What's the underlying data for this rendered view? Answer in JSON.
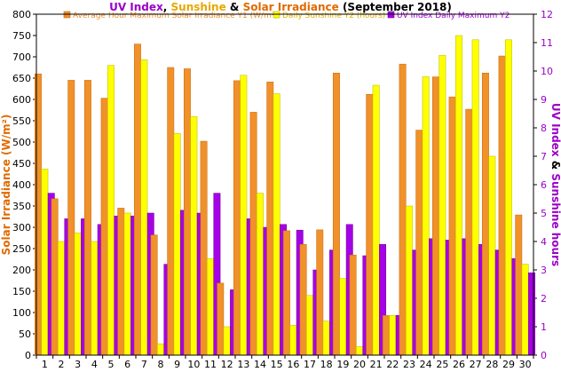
{
  "chart_data": {
    "type": "bar",
    "title": {
      "parts": [
        {
          "text": "UV Index",
          "color": "#9b00c8"
        },
        {
          "text": ", ",
          "color": "#000000"
        },
        {
          "text": "Sunshine",
          "color": "#e8a800"
        },
        {
          "text": " & ",
          "color": "#000000"
        },
        {
          "text": "Solar Irradiance",
          "color": "#e06a00"
        },
        {
          "text": " (September 2018)",
          "color": "#000000"
        }
      ]
    },
    "categories": [
      "1",
      "2",
      "3",
      "4",
      "5",
      "6",
      "7",
      "8",
      "9",
      "10",
      "11",
      "12",
      "13",
      "14",
      "15",
      "16",
      "17",
      "18",
      "19",
      "20",
      "21",
      "22",
      "23",
      "24",
      "25",
      "26",
      "27",
      "28",
      "29",
      "30"
    ],
    "series": [
      {
        "name": "Average Hour Maximum Solar Irradiance Y1 (W/m²)",
        "axis": "y1",
        "color": "#f0912a",
        "edge": "#c96a10",
        "values": [
          660,
          367,
          645,
          645,
          603,
          345,
          730,
          282,
          675,
          672,
          502,
          169,
          644,
          570,
          641,
          292,
          260,
          294,
          662,
          235,
          612,
          93,
          683,
          528,
          653,
          606,
          577,
          662,
          702,
          329
        ]
      },
      {
        "name": "Daily Sunshine Y2 (hours)",
        "axis": "y2",
        "color": "#ffff00",
        "edge": "#b8b800",
        "values": [
          6.55,
          4.0,
          4.3,
          4.0,
          10.2,
          5.0,
          10.4,
          0.4,
          7.8,
          8.4,
          3.4,
          1.0,
          9.85,
          5.7,
          9.2,
          1.05,
          2.1,
          1.2,
          2.7,
          0.3,
          9.5,
          1.4,
          5.25,
          9.8,
          10.55,
          11.25,
          11.1,
          7.0,
          11.1,
          3.2
        ]
      },
      {
        "name": "UV Index Daily Maximum Y2",
        "axis": "y2",
        "color": "#a600e6",
        "edge": "#6a0099",
        "values": [
          5.7,
          4.8,
          4.8,
          4.6,
          4.9,
          4.9,
          5.0,
          3.2,
          5.1,
          5.0,
          5.7,
          2.3,
          4.8,
          4.5,
          4.6,
          4.4,
          3.0,
          3.7,
          4.6,
          3.5,
          3.9,
          1.4,
          3.7,
          4.1,
          4.05,
          4.1,
          3.9,
          3.7,
          3.4,
          2.9
        ]
      }
    ],
    "y1": {
      "label": "Solar Irradiance (W/m²)",
      "min": 0,
      "max": 800,
      "step": 50,
      "color": "#e06a00"
    },
    "y2": {
      "label_parts": [
        {
          "text": "UV Index",
          "color": "#9b00c8"
        },
        {
          "text": " & ",
          "color": "#000000"
        },
        {
          "text": "Sunshine hours",
          "color": "#9b00c8"
        }
      ],
      "min": 0,
      "max": 12,
      "step": 1,
      "color": "#9b00c8"
    },
    "grid": false,
    "legend": "top"
  }
}
